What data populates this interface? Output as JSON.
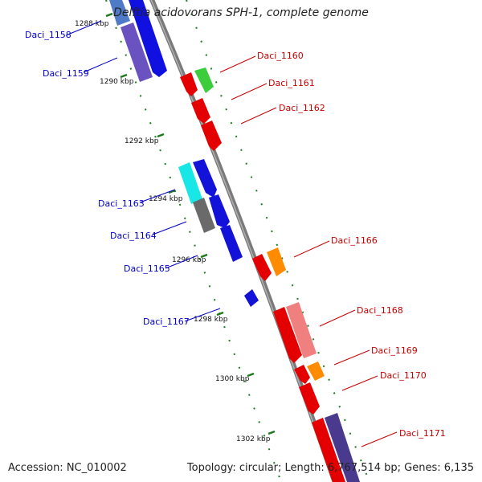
{
  "title": "Delftia acidovorans SPH-1, complete genome",
  "accession": "Accession: NC_010002",
  "topology": "Topology: circular; Length: 6,767,514 bp; Genes: 6,135",
  "colors": {
    "backbone": "#808080",
    "tick": "#1f7a1f",
    "left_label": "#0000c8",
    "right_label": "#c80000"
  },
  "scale_labels": [
    "1288 kbp",
    "1290 kbp",
    "1292 kbp",
    "1294 kbp",
    "1296 kbp",
    "1298 kbp",
    "1300 kbp",
    "1302 kbp"
  ],
  "left_genes": [
    "Daci_1158",
    "Daci_1159",
    "Daci_1163",
    "Daci_1164",
    "Daci_1165",
    "Daci_1167"
  ],
  "right_genes": [
    "Daci_1160",
    "Daci_1161",
    "Daci_1162",
    "Daci_1166",
    "Daci_1168",
    "Daci_1169",
    "Daci_1170",
    "Daci_1171"
  ]
}
